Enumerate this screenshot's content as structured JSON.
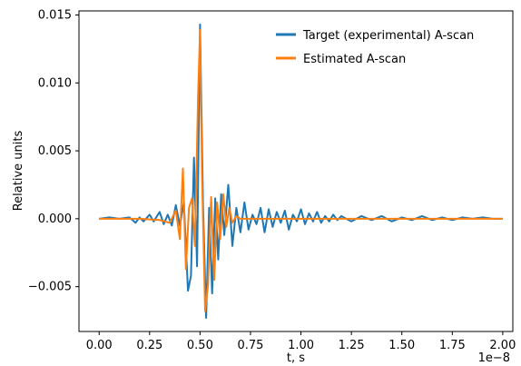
{
  "chart_data": {
    "type": "line",
    "title": "",
    "xlabel": "t, s",
    "ylabel": "Relative units",
    "x_offset_label": "1e−8",
    "xlim": [
      -0.1,
      2.05
    ],
    "ylim": [
      -0.0083,
      0.0153
    ],
    "x_ticks": [
      0.0,
      0.25,
      0.5,
      0.75,
      1.0,
      1.25,
      1.5,
      1.75,
      2.0
    ],
    "x_tick_labels": [
      "0.00",
      "0.25",
      "0.50",
      "0.75",
      "1.00",
      "1.25",
      "1.50",
      "1.75",
      "2.00"
    ],
    "y_ticks": [
      -0.005,
      0.0,
      0.005,
      0.01,
      0.015
    ],
    "y_tick_labels": [
      "−0.005",
      "0.000",
      "0.005",
      "0.010",
      "0.015"
    ],
    "grid": false,
    "legend_position": "top-right",
    "series": [
      {
        "name": "Target (experimental) A-scan",
        "color": "#1f77b4",
        "x": [
          0.0,
          0.05,
          0.1,
          0.15,
          0.18,
          0.2,
          0.22,
          0.25,
          0.27,
          0.3,
          0.32,
          0.34,
          0.36,
          0.38,
          0.4,
          0.42,
          0.44,
          0.455,
          0.47,
          0.485,
          0.5,
          0.515,
          0.53,
          0.545,
          0.56,
          0.575,
          0.59,
          0.605,
          0.62,
          0.64,
          0.66,
          0.68,
          0.7,
          0.72,
          0.74,
          0.76,
          0.78,
          0.8,
          0.82,
          0.84,
          0.86,
          0.88,
          0.9,
          0.92,
          0.94,
          0.96,
          0.98,
          1.0,
          1.02,
          1.04,
          1.06,
          1.08,
          1.1,
          1.12,
          1.14,
          1.16,
          1.18,
          1.2,
          1.25,
          1.3,
          1.35,
          1.4,
          1.45,
          1.5,
          1.55,
          1.6,
          1.65,
          1.7,
          1.75,
          1.8,
          1.85,
          1.9,
          1.95,
          2.0
        ],
        "y": [
          0.0,
          0.0001,
          0.0,
          0.0001,
          -0.0003,
          0.0001,
          -0.0002,
          0.0003,
          -0.0002,
          0.0005,
          -0.0004,
          0.0003,
          -0.0005,
          0.001,
          -0.0005,
          0.0012,
          -0.0053,
          -0.0042,
          0.0045,
          -0.0035,
          0.0143,
          0.001,
          -0.0073,
          0.0008,
          -0.0055,
          0.0015,
          -0.003,
          0.0018,
          -0.0012,
          0.0025,
          -0.002,
          0.0008,
          -0.001,
          0.0012,
          -0.0008,
          0.0003,
          -0.0004,
          0.0008,
          -0.001,
          0.0007,
          -0.0006,
          0.0005,
          -0.0003,
          0.0006,
          -0.0008,
          0.0003,
          -0.0002,
          0.0007,
          -0.0004,
          0.0004,
          -0.0002,
          0.0005,
          -0.0003,
          0.0002,
          -0.0002,
          0.0003,
          -0.0001,
          0.0002,
          -0.0002,
          0.0002,
          -0.0001,
          0.0002,
          -0.0002,
          0.0001,
          -0.0001,
          0.0002,
          -0.0001,
          0.0001,
          -0.0001,
          0.0001,
          0.0,
          0.0001,
          0.0,
          0.0
        ]
      },
      {
        "name": "Estimated A-scan",
        "color": "#ff7f0e",
        "x": [
          0.0,
          0.1,
          0.2,
          0.3,
          0.35,
          0.38,
          0.4,
          0.415,
          0.43,
          0.445,
          0.46,
          0.475,
          0.49,
          0.5,
          0.51,
          0.525,
          0.54,
          0.555,
          0.57,
          0.585,
          0.6,
          0.615,
          0.63,
          0.645,
          0.66,
          0.68,
          0.7,
          0.75,
          0.8,
          0.9,
          1.0,
          1.2,
          1.4,
          1.6,
          1.8,
          2.0
        ],
        "y": [
          0.0,
          0.0,
          0.0,
          -0.0001,
          -0.0003,
          0.0006,
          -0.0015,
          0.0037,
          -0.0037,
          0.0008,
          0.0015,
          -0.002,
          0.009,
          0.0139,
          0.003,
          -0.0068,
          -0.0048,
          0.0016,
          -0.0045,
          0.0012,
          -0.0015,
          0.0018,
          -0.0006,
          0.0008,
          -0.0003,
          0.0002,
          0.0,
          0.0,
          0.0,
          0.0,
          0.0,
          0.0,
          0.0,
          0.0,
          0.0,
          0.0
        ]
      }
    ]
  }
}
